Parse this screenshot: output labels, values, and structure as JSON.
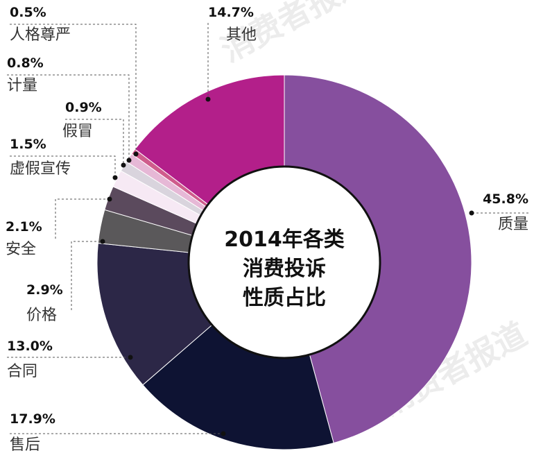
{
  "chart_data": {
    "type": "pie",
    "title": "2014年各类消费投诉性质占比",
    "title_lines": [
      "2014年各类",
      "消费投诉",
      "性质占比"
    ],
    "slices": [
      {
        "label": "质量",
        "value": 45.8,
        "value_text": "45.8%",
        "color": "#864f9e"
      },
      {
        "label": "售后",
        "value": 17.9,
        "value_text": "17.9%",
        "color": "#0e1333"
      },
      {
        "label": "合同",
        "value": 13.0,
        "value_text": "13.0%",
        "color": "#2c2747"
      },
      {
        "label": "价格",
        "value": 2.9,
        "value_text": "2.9%",
        "color": "#5a585a"
      },
      {
        "label": "安全",
        "value": 2.1,
        "value_text": "2.1%",
        "color": "#5b4a5d"
      },
      {
        "label": "虚假宣传",
        "value": 1.5,
        "value_text": "1.5%",
        "color": "#f6e9f4"
      },
      {
        "label": "假冒",
        "value": 0.9,
        "value_text": "0.9%",
        "color": "#d9d4dd"
      },
      {
        "label": "计量",
        "value": 0.8,
        "value_text": "0.8%",
        "color": "#e6b8d6"
      },
      {
        "label": "人格尊严",
        "value": 0.5,
        "value_text": "0.5%",
        "color": "#cf5c8c"
      },
      {
        "label": "其他",
        "value": 14.7,
        "value_text": "14.7%",
        "color": "#b31f8a"
      }
    ]
  },
  "watermark": "消费者报道"
}
